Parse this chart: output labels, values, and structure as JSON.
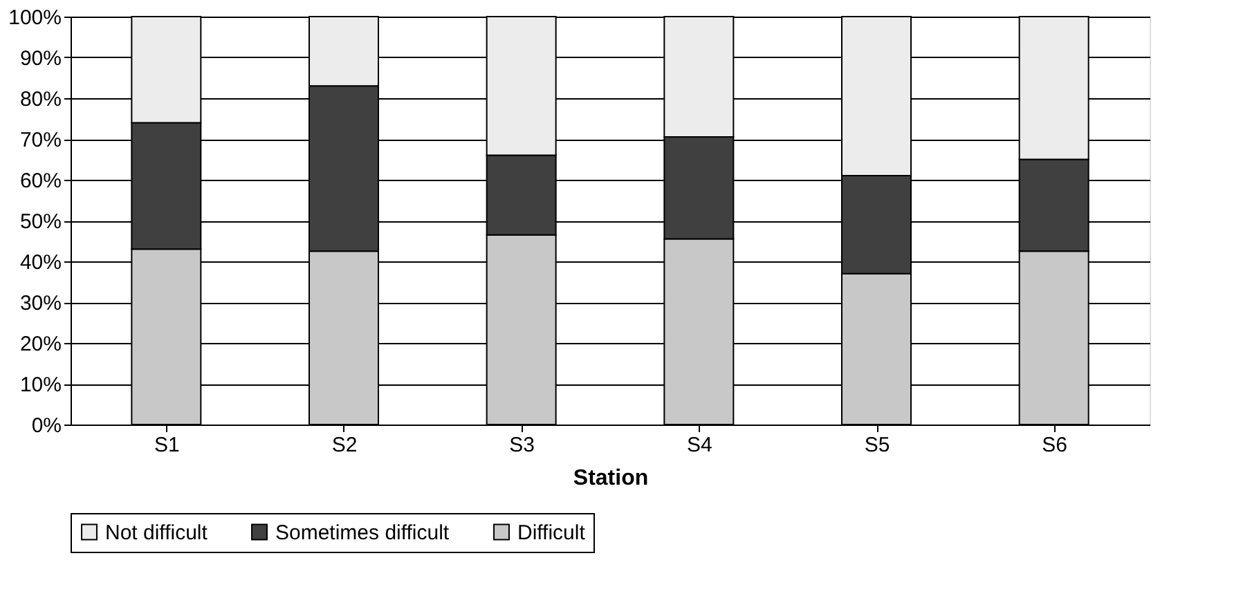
{
  "chart_data": {
    "type": "bar",
    "stacked": true,
    "xlabel": "Station",
    "categories": [
      "S1",
      "S2",
      "S3",
      "S4",
      "S5",
      "S6"
    ],
    "series": [
      {
        "name": "Difficult",
        "color": "#c8c8c8",
        "values": [
          43,
          42.5,
          46.5,
          45.5,
          37,
          42.5
        ]
      },
      {
        "name": "Sometimes difficult",
        "color": "#404040",
        "values": [
          31,
          40.5,
          19.5,
          25,
          24,
          22.5
        ]
      },
      {
        "name": "Not difficult",
        "color": "#ececec",
        "values": [
          26,
          17,
          34,
          29.5,
          39,
          35
        ]
      }
    ],
    "ylim": [
      0,
      100
    ],
    "yticks": [
      {
        "value": 0,
        "label": "0%"
      },
      {
        "value": 10,
        "label": "10%"
      },
      {
        "value": 20,
        "label": "20%"
      },
      {
        "value": 30,
        "label": "30%"
      },
      {
        "value": 40,
        "label": "40%"
      },
      {
        "value": 50,
        "label": "50%"
      },
      {
        "value": 60,
        "label": "60%"
      },
      {
        "value": 70,
        "label": "70%"
      },
      {
        "value": 80,
        "label": "80%"
      },
      {
        "value": 90,
        "label": "90%"
      },
      {
        "value": 100,
        "label": "100%"
      }
    ],
    "grid": "y",
    "legend": "bottom"
  }
}
